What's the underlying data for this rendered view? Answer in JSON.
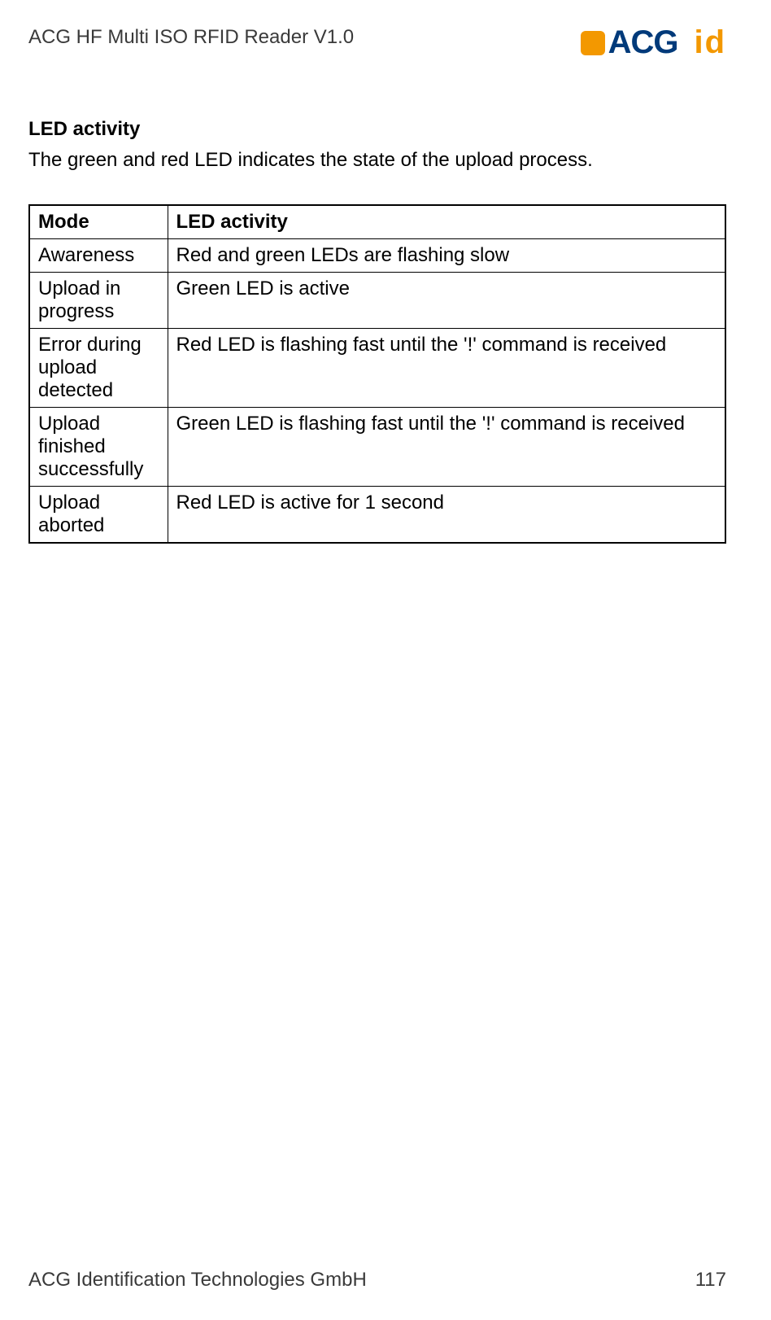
{
  "header": {
    "doc_title": "ACG HF Multi ISO RFID Reader V1.0",
    "logo_acg": "ACG",
    "logo_id": "id"
  },
  "section": {
    "title": "LED activity",
    "intro": "The green and red LED indicates the state of the upload process."
  },
  "table": {
    "columns": [
      "Mode",
      "LED activity"
    ],
    "rows": [
      [
        "Awareness",
        "Red and green LEDs are flashing slow"
      ],
      [
        "Upload in progress",
        "Green LED is active"
      ],
      [
        "Error during upload detected",
        "Red LED is flashing fast until the '!' command is received"
      ],
      [
        "Upload finished successfully",
        "Green LED is flashing fast until the '!' command is received"
      ],
      [
        "Upload aborted",
        "Red LED is active for 1 second"
      ]
    ]
  },
  "footer": {
    "company": "ACG Identification Technologies GmbH",
    "page": "117"
  },
  "colors": {
    "text": "#000000",
    "header_text": "#3a3a3a",
    "logo_blue": "#003a7a",
    "logo_orange": "#f39800",
    "border": "#000000",
    "background": "#ffffff"
  }
}
